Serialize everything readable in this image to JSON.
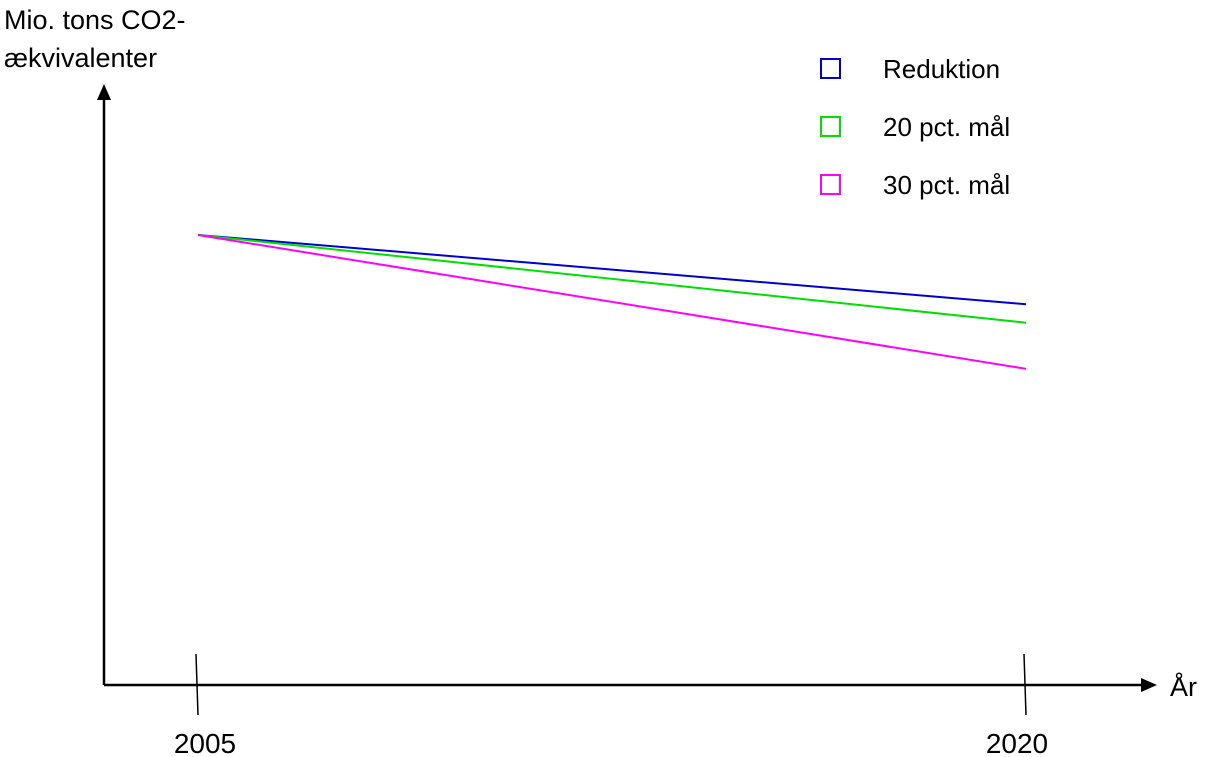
{
  "chart_data": {
    "type": "line",
    "title": "",
    "ylabel_lines": [
      "Mio. tons CO2-",
      "ækvivalenter"
    ],
    "xlabel": "År",
    "x": [
      "2005",
      "2020"
    ],
    "series": [
      {
        "name": "Reduktion",
        "color": "#0000cc",
        "values": [
          100,
          70
        ]
      },
      {
        "name": "20 pct. mål",
        "color": "#00dd00",
        "values": [
          100,
          62
        ]
      },
      {
        "name": "30 pct. mål",
        "color": "#ff00ff",
        "values": [
          100,
          42
        ]
      }
    ],
    "ylim": [
      -95,
      165
    ],
    "legend_position": "top-right",
    "grid": false
  }
}
